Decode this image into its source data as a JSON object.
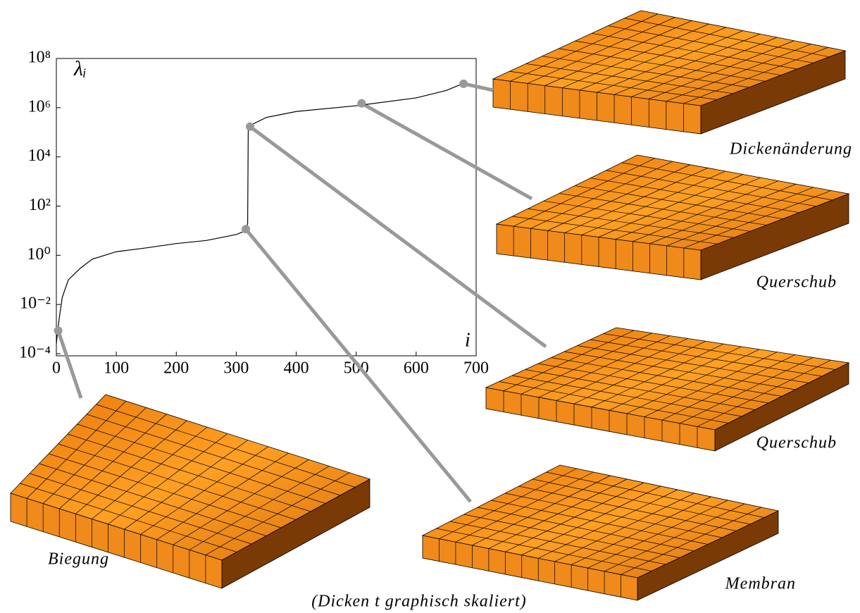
{
  "chart_data": {
    "type": "line",
    "y_label": "λᵢ",
    "x_label": "i",
    "log_y": true,
    "color": "#000000",
    "highlight_color": "#999999",
    "xlim": [
      0,
      700
    ],
    "xticks": [
      0,
      100,
      200,
      300,
      400,
      500,
      600,
      700
    ],
    "ylim": [
      0.0001,
      100000000
    ],
    "yticks": [
      {
        "value": 0.0001,
        "label": "10⁻⁴"
      },
      {
        "value": 0.01,
        "label": "10⁻²"
      },
      {
        "value": 1,
        "label": "10⁰"
      },
      {
        "value": 100,
        "label": "10²"
      },
      {
        "value": 10000,
        "label": "10⁴"
      },
      {
        "value": 1000000,
        "label": "10⁶"
      },
      {
        "value": 100000000,
        "label": "10⁸"
      }
    ],
    "x": [
      0,
      2,
      5,
      10,
      20,
      40,
      60,
      100,
      150,
      200,
      250,
      300,
      316,
      319,
      320,
      325,
      350,
      400,
      500,
      600,
      650,
      680
    ],
    "values": [
      0.00025,
      0.0008,
      0.003,
      0.02,
      0.1,
      0.3,
      0.7,
      1.4,
      2,
      3,
      4,
      7,
      10,
      20,
      150000,
      200000,
      400000,
      700000,
      1200000,
      2500000,
      5000000,
      10000000
    ],
    "highlights": {
      "x": [
        3,
        316,
        323,
        509,
        679
      ],
      "values": [
        0.00087,
        11.5,
        170000,
        1500000,
        9400000
      ]
    },
    "annotations": [
      "Dickenänderung",
      "Querschub",
      "Querschub",
      "Membran",
      "Biegung",
      "(Dicken t graphisch skaliert)"
    ]
  }
}
